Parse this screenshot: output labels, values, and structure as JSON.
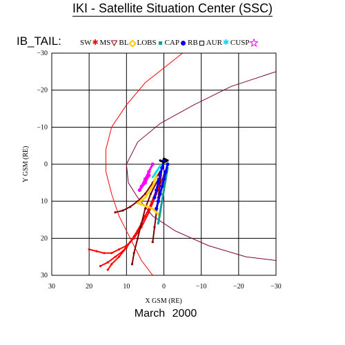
{
  "header": {
    "title": "IKI - Satellite Situation Center (SSC)"
  },
  "dataset": {
    "label": "IB_TAIL:"
  },
  "legend": [
    {
      "label": "SW",
      "symbol": "asterisk-icon",
      "color": "#ff0000"
    },
    {
      "label": "MS",
      "symbol": "triangle-down-icon",
      "color": "#800000"
    },
    {
      "label": "BL",
      "symbol": "diamond-icon",
      "color": "#ffd400"
    },
    {
      "label": "LOBS",
      "symbol": "square-icon",
      "color": "#1a9a9a"
    },
    {
      "label": "CAP",
      "symbol": "circle-icon",
      "color": "#0000ff"
    },
    {
      "label": "RB",
      "symbol": "hollow-square-icon",
      "color": "#000000"
    },
    {
      "label": "AUR",
      "symbol": "asterisk-icon",
      "color": "#00e0ff"
    },
    {
      "label": "CUSP",
      "symbol": "star-icon",
      "color": "#ff00ff"
    }
  ],
  "footer": {
    "period": "March   2000"
  },
  "chart_data": {
    "type": "scatter",
    "title": "IKI - Satellite Situation Center (SSC)",
    "xlabel": "X GSM (RE)",
    "ylabel": "Y GSM (RE)",
    "xlim": [
      30,
      -30
    ],
    "ylim": [
      -30,
      30
    ],
    "xticks": [
      30,
      20,
      10,
      0,
      -10,
      -20,
      -30
    ],
    "yticks": [
      -30,
      -20,
      -10,
      0,
      10,
      20,
      30
    ],
    "grid": true,
    "boundaries": [
      {
        "name": "bow-shock",
        "color": "#ff0000",
        "points": [
          [
            -5,
            -30
          ],
          [
            5,
            -22
          ],
          [
            10,
            -16
          ],
          [
            14,
            -10
          ],
          [
            15.5,
            -4
          ],
          [
            15.5,
            2
          ],
          [
            14,
            8
          ],
          [
            12,
            14
          ],
          [
            9,
            20
          ],
          [
            6,
            26
          ],
          [
            3,
            30
          ]
        ]
      },
      {
        "name": "magnetopause",
        "color": "#800040",
        "points": [
          [
            -30,
            -25
          ],
          [
            -18,
            -21
          ],
          [
            -8,
            -16
          ],
          [
            1,
            -11
          ],
          [
            7,
            -6
          ],
          [
            10,
            0
          ],
          [
            9.5,
            5
          ],
          [
            7,
            9
          ],
          [
            3,
            14
          ],
          [
            -3,
            18
          ],
          [
            -12,
            22
          ],
          [
            -22,
            25
          ],
          [
            -30,
            26
          ]
        ]
      }
    ],
    "series": [
      {
        "region": "SW",
        "color": "#ff0000",
        "tracks": [
          [
            [
              0,
              3
            ],
            [
              2,
              8
            ],
            [
              4,
              13
            ],
            [
              6,
              17
            ],
            [
              8,
              20
            ],
            [
              10,
              22
            ],
            [
              12,
              23
            ],
            [
              14,
              24
            ],
            [
              16,
              24
            ],
            [
              18,
              23.5
            ],
            [
              20,
              23
            ]
          ],
          [
            [
              1,
              5
            ],
            [
              3,
              10
            ],
            [
              5,
              14
            ],
            [
              7,
              18
            ],
            [
              9,
              21
            ],
            [
              11,
              23.5
            ],
            [
              13,
              25
            ],
            [
              15,
              26.5
            ],
            [
              17,
              27.5
            ]
          ],
          [
            [
              2,
              7
            ],
            [
              4,
              12
            ],
            [
              6,
              16
            ],
            [
              8,
              19.5
            ],
            [
              10,
              22.5
            ],
            [
              12,
              25
            ],
            [
              14,
              27
            ],
            [
              15,
              28.5
            ]
          ]
        ]
      },
      {
        "region": "MS",
        "color": "#800000",
        "tracks": [
          [
            [
              1,
              2
            ],
            [
              3,
              5
            ],
            [
              5,
              8
            ],
            [
              7,
              10
            ],
            [
              9,
              11.5
            ],
            [
              11,
              12.5
            ],
            [
              13,
              13
            ]
          ],
          [
            [
              1.5,
              4
            ],
            [
              3.5,
              8
            ],
            [
              5,
              12
            ],
            [
              6,
              16
            ],
            [
              7,
              20
            ],
            [
              8,
              24
            ],
            [
              8.5,
              27
            ]
          ],
          [
            [
              0.5,
              1
            ],
            [
              1,
              5
            ],
            [
              1.5,
              9
            ],
            [
              2,
              13
            ],
            [
              2.5,
              17
            ],
            [
              3,
              21
            ]
          ]
        ]
      },
      {
        "region": "BL",
        "color": "#ffd400",
        "tracks": [
          [
            [
              2,
              3
            ],
            [
              3,
              6
            ],
            [
              5,
              9
            ],
            [
              7,
              10.5
            ],
            [
              3,
              12
            ],
            [
              1,
              14
            ]
          ]
        ]
      },
      {
        "region": "LOBS",
        "color": "#1a9a9a",
        "tracks": [
          [
            [
              -1,
              1
            ],
            [
              -0.5,
              4
            ],
            [
              0,
              7
            ],
            [
              0.5,
              10
            ],
            [
              1,
              13
            ],
            [
              1.5,
              16
            ]
          ]
        ]
      },
      {
        "region": "CAP",
        "color": "#0000ff",
        "tracks": [
          [
            [
              -1,
              0
            ],
            [
              -0.5,
              2
            ],
            [
              0,
              4
            ],
            [
              0.5,
              6
            ],
            [
              1,
              8
            ],
            [
              1.5,
              10
            ],
            [
              2,
              12
            ]
          ],
          [
            [
              0,
              -1
            ],
            [
              0.5,
              1
            ],
            [
              1,
              3
            ],
            [
              1.5,
              5
            ],
            [
              2,
              7
            ],
            [
              2.5,
              9
            ]
          ]
        ]
      },
      {
        "region": "RB",
        "color": "#000000",
        "tracks": [
          [
            [
              1,
              -1
            ],
            [
              0,
              -0.5
            ],
            [
              -1,
              -1
            ],
            [
              0,
              -1.5
            ]
          ]
        ]
      },
      {
        "region": "AUR",
        "color": "#00e0ff",
        "tracks": [
          [
            [
              1,
              0.5
            ],
            [
              2,
              2
            ],
            [
              3,
              3.5
            ]
          ]
        ]
      },
      {
        "region": "CUSP",
        "color": "#ff00ff",
        "tracks": [
          [
            [
              3,
              0
            ],
            [
              4,
              2
            ],
            [
              5,
              4
            ],
            [
              6,
              6
            ],
            [
              6.5,
              7
            ],
            [
              5,
              5
            ],
            [
              4,
              3
            ]
          ]
        ]
      }
    ]
  }
}
